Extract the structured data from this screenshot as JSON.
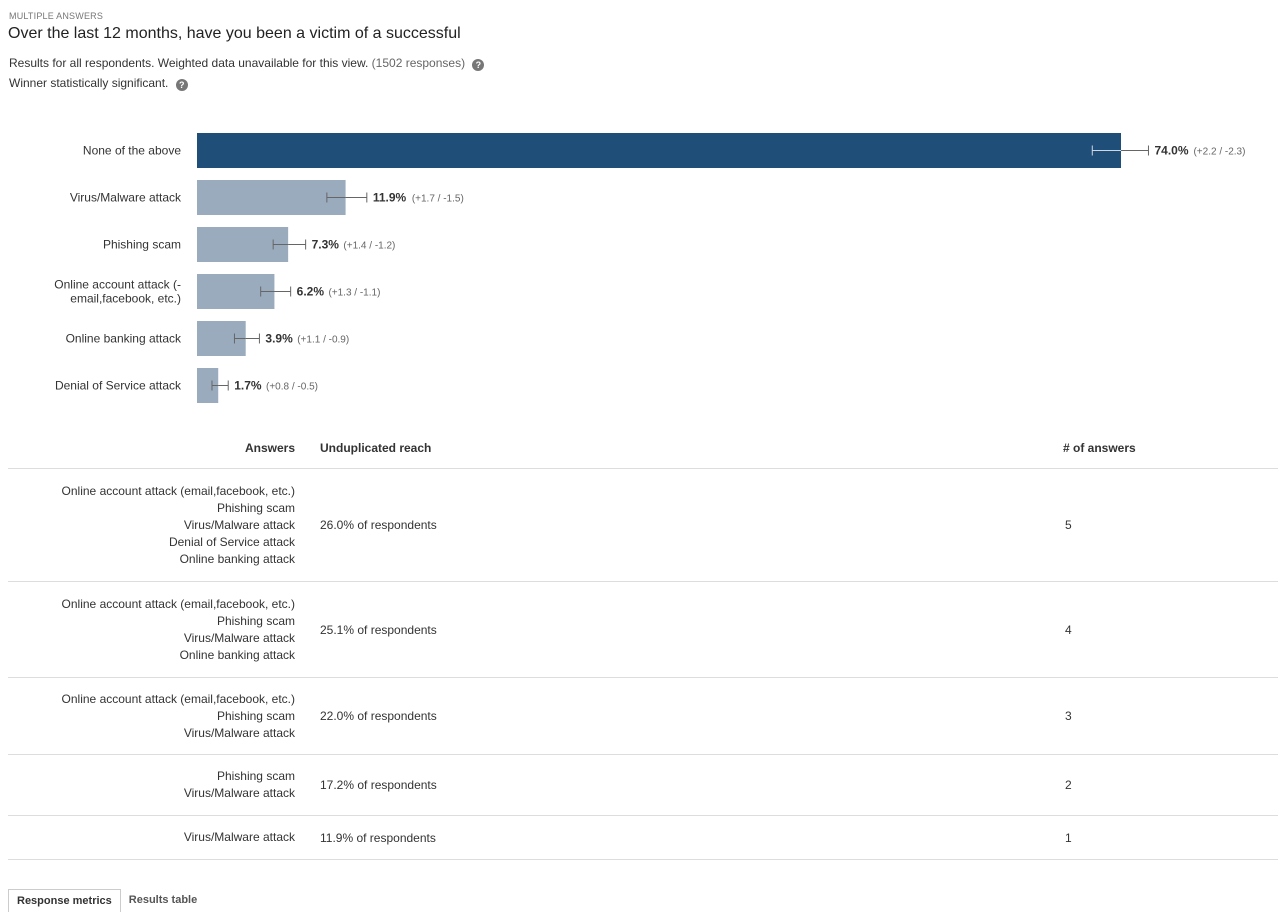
{
  "header": {
    "eyebrow": "MULTIPLE ANSWERS",
    "question": "Over the last 12 months, have you been a victim of a successful",
    "meta_text": "Results for all respondents. Weighted data unavailable for this view.",
    "meta_count": "(1502 responses)",
    "significance": "Winner statistically significant.",
    "help_icon": "question-circle-icon"
  },
  "colors": {
    "winner_bar": "#1f4e79",
    "bar": "#9aabbd",
    "error_bar": "#666666"
  },
  "chart_data": {
    "type": "bar",
    "orientation": "horizontal",
    "xlim": [
      0,
      78
    ],
    "categories": [
      [
        "None of the above"
      ],
      [
        "Virus/Malware attack"
      ],
      [
        "Phishing scam"
      ],
      [
        "Online account attack (-",
        "email,facebook, etc.)"
      ],
      [
        "Online banking attack"
      ],
      [
        "Denial of Service attack"
      ]
    ],
    "values": [
      74.0,
      11.9,
      7.3,
      6.2,
      3.9,
      1.7
    ],
    "value_labels": [
      "74.0%",
      "11.9%",
      "7.3%",
      "6.2%",
      "3.9%",
      "1.7%"
    ],
    "error_plus": [
      2.2,
      1.7,
      1.4,
      1.3,
      1.1,
      0.8
    ],
    "error_minus": [
      2.3,
      1.5,
      1.2,
      1.1,
      0.9,
      0.5
    ],
    "error_labels": [
      "(+2.2 / -2.3)",
      "(+1.7 / -1.5)",
      "(+1.4 / -1.2)",
      "(+1.3 / -1.1)",
      "(+1.1 / -0.9)",
      "(+0.8 / -0.5)"
    ],
    "winner_index": 0
  },
  "table": {
    "headers": [
      "Answers",
      "Unduplicated reach",
      "# of answers"
    ],
    "rows": [
      {
        "answers": [
          "Online account attack (email,facebook, etc.)",
          "Phishing scam",
          "Virus/Malware attack",
          "Denial of Service attack",
          "Online banking attack"
        ],
        "reach": "26.0% of respondents",
        "count": "5"
      },
      {
        "answers": [
          "Online account attack (email,facebook, etc.)",
          "Phishing scam",
          "Virus/Malware attack",
          "Online banking attack"
        ],
        "reach": "25.1% of respondents",
        "count": "4"
      },
      {
        "answers": [
          "Online account attack (email,facebook, etc.)",
          "Phishing scam",
          "Virus/Malware attack"
        ],
        "reach": "22.0% of respondents",
        "count": "3"
      },
      {
        "answers": [
          "Phishing scam",
          "Virus/Malware attack"
        ],
        "reach": "17.2% of respondents",
        "count": "2"
      },
      {
        "answers": [
          "Virus/Malware attack"
        ],
        "reach": "11.9% of respondents",
        "count": "1"
      }
    ]
  },
  "tabs": [
    {
      "label": "Response metrics",
      "active": true
    },
    {
      "label": "Results table",
      "active": false
    }
  ]
}
